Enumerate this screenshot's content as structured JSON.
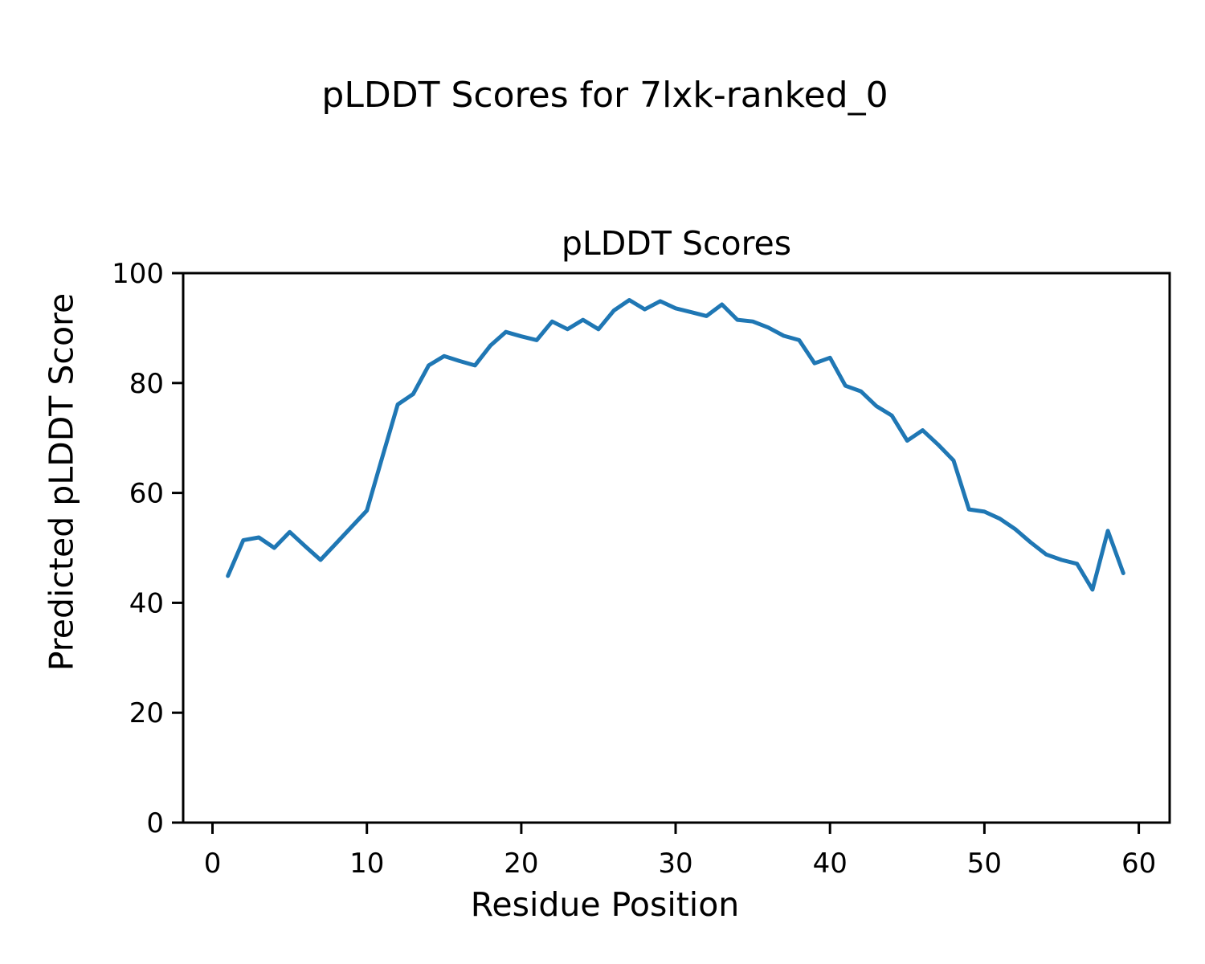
{
  "figure": {
    "suptitle": "pLDDT Scores for 7lxk-ranked_0",
    "background": "#ffffff",
    "text_color": "#000000"
  },
  "chart_data": {
    "type": "line",
    "title": "pLDDT Scores",
    "xlabel": "Residue Position",
    "ylabel": "Predicted pLDDT Score",
    "series_name": "pLDDT",
    "line_color": "#1f77b4",
    "grid": false,
    "legend": "none",
    "xlim": [
      -1.9,
      62.0
    ],
    "ylim": [
      0,
      100
    ],
    "xticks": [
      0,
      10,
      20,
      30,
      40,
      50,
      60
    ],
    "yticks": [
      0,
      20,
      40,
      60,
      80,
      100
    ],
    "x": [
      1,
      2,
      3,
      4,
      5,
      6,
      7,
      8,
      9,
      10,
      11,
      12,
      13,
      14,
      15,
      16,
      17,
      18,
      19,
      20,
      21,
      22,
      23,
      24,
      25,
      26,
      27,
      28,
      29,
      30,
      31,
      32,
      33,
      34,
      35,
      36,
      37,
      38,
      39,
      40,
      41,
      42,
      43,
      44,
      45,
      46,
      47,
      48,
      49,
      50,
      51,
      52,
      53,
      54,
      55,
      56,
      57,
      58,
      59
    ],
    "values": [
      44.9,
      51.4,
      51.9,
      50.0,
      52.9,
      50.3,
      47.8,
      50.8,
      53.8,
      56.8,
      66.5,
      76.1,
      78.0,
      83.2,
      84.9,
      84.0,
      83.2,
      86.8,
      89.3,
      88.5,
      87.8,
      91.2,
      89.8,
      91.5,
      89.8,
      93.2,
      95.1,
      93.4,
      94.9,
      93.6,
      92.9,
      92.2,
      94.3,
      91.5,
      91.2,
      90.1,
      88.6,
      87.8,
      83.6,
      84.6,
      79.5,
      78.5,
      75.8,
      74.1,
      69.5,
      71.4,
      68.8,
      65.9,
      57.0,
      56.6,
      55.3,
      53.4,
      51.0,
      48.8,
      47.8,
      47.1,
      42.4,
      53.1,
      45.4
    ]
  }
}
